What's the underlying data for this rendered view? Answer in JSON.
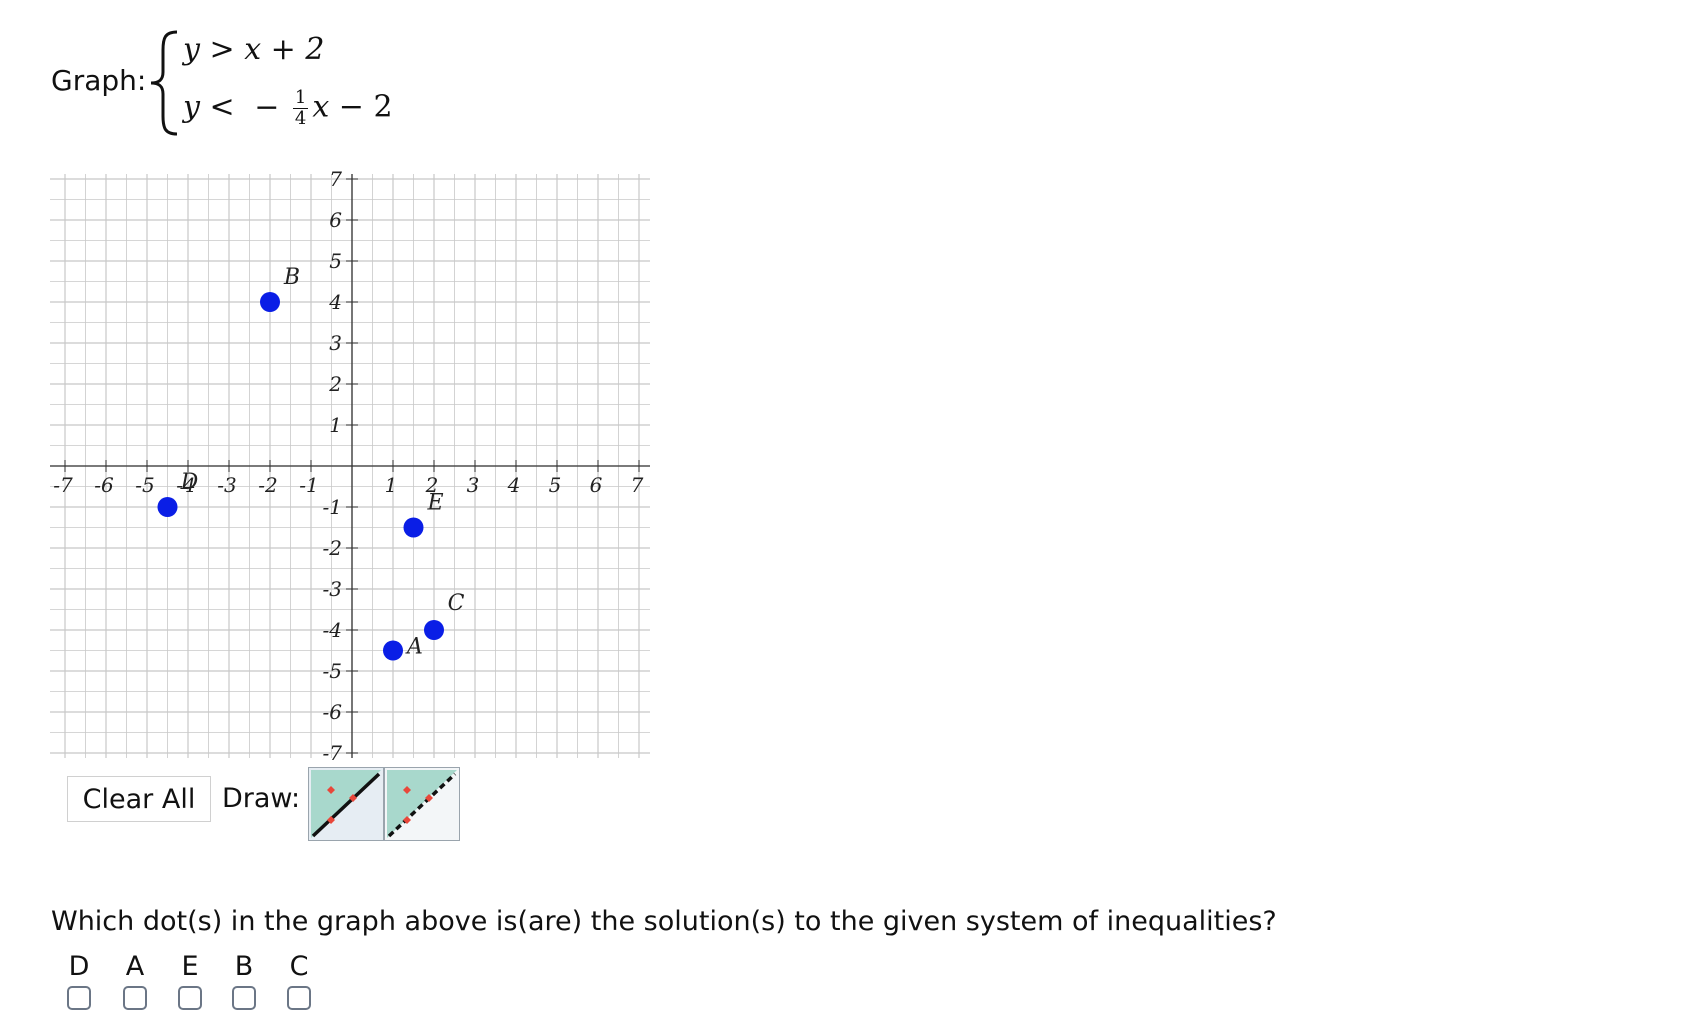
{
  "header": {
    "graph_label": "Graph:",
    "inequality_1": {
      "lhs": "y",
      "op": ">",
      "rhs": "x + 2"
    },
    "inequality_2": {
      "lhs": "y",
      "op": "<",
      "sign": "−",
      "num": "1",
      "den": "4",
      "var": "x",
      "tail": "− 2"
    }
  },
  "graph": {
    "x_range": [
      -7,
      7
    ],
    "y_range": [
      -7,
      7
    ],
    "x_tick_labels": [
      "-7",
      "-6",
      "-5",
      "-4",
      "-3",
      "-2",
      "-1",
      "1",
      "2",
      "3",
      "4",
      "5",
      "6",
      "7"
    ],
    "y_tick_labels": [
      "7",
      "6",
      "5",
      "4",
      "3",
      "2",
      "1",
      "-1",
      "-2",
      "-3",
      "-4",
      "-5",
      "-6",
      "-7"
    ],
    "dot_color": "#0a1ee6",
    "points": [
      {
        "label": "B",
        "x": -2,
        "y": 4
      },
      {
        "label": "D",
        "x": -4.5,
        "y": -1
      },
      {
        "label": "E",
        "x": 1.5,
        "y": -1.5
      },
      {
        "label": "C",
        "x": 2,
        "y": -4
      },
      {
        "label": "A",
        "x": 1,
        "y": -4.5
      }
    ]
  },
  "toolbar": {
    "clear_all": "Clear All",
    "draw_label": "Draw:",
    "tools": [
      {
        "name": "solid-line-tool-icon",
        "line": "solid"
      },
      {
        "name": "dashed-line-tool-icon",
        "line": "dashed"
      }
    ]
  },
  "question": {
    "text": "Which dot(s) in the graph above is(are) the solution(s) to the given system of inequalities?",
    "options": [
      "D",
      "A",
      "E",
      "B",
      "C"
    ]
  },
  "colors": {
    "grid": "#c8c8c8",
    "tool_bg": "#e6edf3",
    "tool_region": "#a8d8cc",
    "tool_marker": "#e8473a",
    "checkbox_border": "#6b7686"
  }
}
